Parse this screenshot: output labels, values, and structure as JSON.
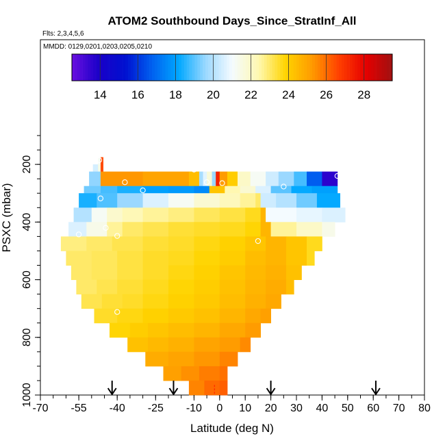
{
  "chart_data": {
    "type": "heatmap",
    "title": "ATOM2 Southbound Days_Since_StratInf_All",
    "subtitle_flights": "Flts: 2,3,4,5,6",
    "subtitle_dates": "MMDD: 0129,0201,0203,0205,0210",
    "xlabel": "Latitude (deg N)",
    "ylabel": "PSXC (mbar)",
    "xlim": [
      -70,
      80
    ],
    "ylim": [
      1000,
      50
    ],
    "x_ticks": [
      -70,
      -55,
      -40,
      -25,
      -10,
      0,
      10,
      20,
      30,
      40,
      50,
      60,
      70,
      80
    ],
    "x_tick_labels": [
      "-70",
      "-55",
      "-40",
      "-25",
      "-10",
      "0",
      "10",
      "20",
      "30",
      "40",
      "50",
      "60",
      "70",
      "80"
    ],
    "y_ticks": [
      200,
      400,
      600,
      800,
      1000
    ],
    "y_tick_labels": [
      "200",
      "400",
      "600",
      "800",
      "1000"
    ],
    "colorbar": {
      "min": 12.5,
      "max": 29.5,
      "ticks": [
        14,
        16,
        18,
        20,
        22,
        24,
        26,
        28
      ],
      "tick_labels": [
        "14",
        "16",
        "18",
        "20",
        "22",
        "24",
        "26",
        "28"
      ],
      "colors": [
        "#6a0fe0",
        "#1a00c8",
        "#0010d0",
        "#0060f0",
        "#00a8ff",
        "#9ad8ff",
        "#f4fbff",
        "#fff8b0",
        "#ffd400",
        "#ff9a00",
        "#ff4000",
        "#e60000",
        "#a01010"
      ]
    },
    "arrow_latitudes": [
      -42,
      -18,
      20,
      61
    ],
    "reference_line_latitude": -2,
    "reference_line_color": "#ff3000",
    "bands": [
      {
        "pmin": 175,
        "pmax": 200,
        "cells": [
          [
            -47.5,
            -46.5,
            21.2
          ],
          [
            -46.5,
            -45.5,
            26.5
          ]
        ]
      },
      {
        "pmin": 200,
        "pmax": 225,
        "cells": [
          [
            -49.5,
            -47.5,
            20.5
          ],
          [
            -47.5,
            -46.5,
            21.5
          ],
          [
            -46.5,
            -45.5,
            26.5
          ]
        ]
      },
      {
        "pmin": 225,
        "pmax": 275,
        "cells": [
          [
            -51,
            -46.5,
            19.5
          ],
          [
            -46.5,
            -30,
            25.3
          ],
          [
            -30,
            -12,
            25.0
          ],
          [
            -12,
            -8,
            24.4
          ],
          [
            -8,
            -6.5,
            19.8
          ],
          [
            -6.5,
            -5,
            20.7
          ],
          [
            -5,
            -3,
            21.7
          ],
          [
            -3,
            -1.5,
            19.6
          ],
          [
            -1.5,
            0,
            27.3
          ],
          [
            0,
            3,
            25.2
          ],
          [
            3,
            7,
            24.0
          ],
          [
            7,
            12,
            22.0
          ],
          [
            12,
            18,
            21.2
          ],
          [
            18,
            23,
            20.4
          ],
          [
            23,
            29,
            19.6
          ],
          [
            29,
            34,
            18.8
          ],
          [
            34,
            40,
            16.7
          ],
          [
            40,
            46,
            13.6
          ]
        ]
      },
      {
        "pmin": 275,
        "pmax": 300,
        "cells": [
          [
            -53,
            -46.5,
            19.2
          ],
          [
            -46.5,
            -40,
            18.8
          ],
          [
            -40,
            -30,
            18.4
          ],
          [
            -30,
            -20,
            18.0
          ],
          [
            -20,
            -10,
            17.9
          ],
          [
            -10,
            -4,
            17.6
          ],
          [
            -4,
            2,
            24.2
          ],
          [
            2,
            8,
            22.4
          ],
          [
            8,
            14,
            21.8
          ],
          [
            14,
            20,
            20.6
          ],
          [
            20,
            28,
            19.0
          ],
          [
            28,
            36,
            18.2
          ],
          [
            36,
            46,
            18.0
          ]
        ]
      },
      {
        "pmin": 300,
        "pmax": 350,
        "cells": [
          [
            -55,
            -48,
            18.4
          ],
          [
            -48,
            -40,
            18.9
          ],
          [
            -40,
            -30,
            19.6
          ],
          [
            -30,
            -20,
            20.6
          ],
          [
            -20,
            -10,
            21.2
          ],
          [
            -10,
            0,
            21.8
          ],
          [
            0,
            8,
            22.2
          ],
          [
            8,
            14,
            22.6
          ],
          [
            14,
            16,
            23.0
          ],
          [
            16,
            22,
            20.4
          ],
          [
            22,
            30,
            20.0
          ],
          [
            30,
            38,
            19.2
          ],
          [
            38,
            47,
            18.2
          ]
        ]
      },
      {
        "pmin": 350,
        "pmax": 400,
        "cells": [
          [
            -57,
            -50,
            20.0
          ],
          [
            -50,
            -44,
            21.2
          ],
          [
            -44,
            -38,
            21.9
          ],
          [
            -38,
            -30,
            22.3
          ],
          [
            -30,
            -20,
            22.6
          ],
          [
            -20,
            -10,
            22.8
          ],
          [
            -10,
            0,
            23.1
          ],
          [
            0,
            10,
            23.3
          ],
          [
            10,
            16,
            23.6
          ],
          [
            16,
            18,
            24.6
          ],
          [
            18,
            30,
            21.0
          ],
          [
            30,
            40,
            20.8
          ],
          [
            40,
            49,
            20.6
          ]
        ]
      },
      {
        "pmin": 400,
        "pmax": 450,
        "cells": [
          [
            -59,
            -52,
            20.6
          ],
          [
            -52,
            -44,
            21.4
          ],
          [
            -44,
            -38,
            22.6
          ],
          [
            -38,
            -30,
            23.0
          ],
          [
            -30,
            -20,
            23.2
          ],
          [
            -20,
            -10,
            23.4
          ],
          [
            -10,
            0,
            23.5
          ],
          [
            0,
            10,
            23.6
          ],
          [
            10,
            16,
            23.8
          ],
          [
            16,
            20,
            24.6
          ],
          [
            20,
            30,
            22.6
          ],
          [
            30,
            40,
            22.0
          ],
          [
            40,
            45,
            21.4
          ]
        ]
      },
      {
        "pmin": 450,
        "pmax": 500,
        "cells": [
          [
            -62,
            -52,
            22.8
          ],
          [
            -52,
            -42,
            23.0
          ],
          [
            -42,
            -30,
            23.2
          ],
          [
            -30,
            -20,
            23.4
          ],
          [
            -20,
            -10,
            23.5
          ],
          [
            -10,
            0,
            23.7
          ],
          [
            0,
            10,
            23.9
          ],
          [
            10,
            18,
            24.2
          ],
          [
            18,
            26,
            24.6
          ],
          [
            26,
            34,
            24.2
          ],
          [
            34,
            40,
            23.6
          ]
        ]
      },
      {
        "pmin": 500,
        "pmax": 550,
        "cells": [
          [
            -60,
            -50,
            23.0
          ],
          [
            -50,
            -40,
            23.1
          ],
          [
            -40,
            -30,
            23.3
          ],
          [
            -30,
            -20,
            23.5
          ],
          [
            -20,
            -10,
            23.6
          ],
          [
            -10,
            0,
            23.8
          ],
          [
            0,
            10,
            24.0
          ],
          [
            10,
            18,
            24.4
          ],
          [
            18,
            26,
            24.6
          ],
          [
            26,
            34,
            24.2
          ],
          [
            34,
            37,
            23.6
          ]
        ]
      },
      {
        "pmin": 550,
        "pmax": 600,
        "cells": [
          [
            -58,
            -50,
            23.0
          ],
          [
            -50,
            -40,
            23.1
          ],
          [
            -40,
            -30,
            23.3
          ],
          [
            -30,
            -20,
            23.5
          ],
          [
            -20,
            -10,
            23.7
          ],
          [
            -10,
            0,
            23.9
          ],
          [
            0,
            10,
            24.2
          ],
          [
            10,
            18,
            24.5
          ],
          [
            18,
            26,
            24.7
          ],
          [
            26,
            32,
            24.3
          ]
        ]
      },
      {
        "pmin": 600,
        "pmax": 650,
        "cells": [
          [
            -56,
            -48,
            23.0
          ],
          [
            -48,
            -40,
            23.2
          ],
          [
            -40,
            -30,
            23.4
          ],
          [
            -30,
            -20,
            23.6
          ],
          [
            -20,
            -10,
            23.8
          ],
          [
            -10,
            0,
            24.0
          ],
          [
            0,
            10,
            24.3
          ],
          [
            10,
            18,
            24.6
          ],
          [
            18,
            26,
            24.8
          ],
          [
            26,
            29,
            24.4
          ]
        ]
      },
      {
        "pmin": 650,
        "pmax": 700,
        "cells": [
          [
            -54,
            -46,
            23.2
          ],
          [
            -46,
            -38,
            23.4
          ],
          [
            -38,
            -30,
            23.5
          ],
          [
            -30,
            -20,
            23.7
          ],
          [
            -20,
            -10,
            23.9
          ],
          [
            -10,
            0,
            24.1
          ],
          [
            0,
            10,
            24.4
          ],
          [
            10,
            18,
            24.7
          ],
          [
            18,
            24,
            24.9
          ]
        ]
      },
      {
        "pmin": 700,
        "pmax": 750,
        "cells": [
          [
            -49,
            -40,
            23.5
          ],
          [
            -40,
            -30,
            23.7
          ],
          [
            -30,
            -20,
            23.9
          ],
          [
            -20,
            -10,
            24.1
          ],
          [
            -10,
            0,
            24.3
          ],
          [
            0,
            10,
            24.6
          ],
          [
            10,
            16,
            24.9
          ],
          [
            16,
            20,
            25.1
          ]
        ]
      },
      {
        "pmin": 750,
        "pmax": 800,
        "cells": [
          [
            -43,
            -35,
            23.8
          ],
          [
            -35,
            -28,
            24.0
          ],
          [
            -28,
            -20,
            24.2
          ],
          [
            -20,
            -10,
            24.4
          ],
          [
            -10,
            0,
            24.6
          ],
          [
            0,
            10,
            24.9
          ],
          [
            10,
            16,
            25.2
          ]
        ]
      },
      {
        "pmin": 800,
        "pmax": 850,
        "cells": [
          [
            -36,
            -28,
            24.3
          ],
          [
            -28,
            -20,
            24.5
          ],
          [
            -20,
            -10,
            24.7
          ],
          [
            -10,
            0,
            25.0
          ],
          [
            0,
            8,
            25.2
          ],
          [
            8,
            12,
            25.5
          ]
        ]
      },
      {
        "pmin": 850,
        "pmax": 900,
        "cells": [
          [
            -29,
            -20,
            24.8
          ],
          [
            -20,
            -10,
            25.0
          ],
          [
            -10,
            0,
            25.3
          ],
          [
            0,
            7,
            25.6
          ]
        ]
      },
      {
        "pmin": 900,
        "pmax": 950,
        "cells": [
          [
            -22,
            -15,
            25.1
          ],
          [
            -15,
            -8,
            25.4
          ],
          [
            -8,
            0,
            25.7
          ],
          [
            0,
            3,
            25.9
          ]
        ]
      },
      {
        "pmin": 950,
        "pmax": 1000,
        "cells": [
          [
            -12,
            -6,
            25.6
          ],
          [
            -6,
            0,
            26.0
          ],
          [
            0,
            3,
            26.2
          ]
        ]
      }
    ],
    "sample_points": [
      {
        "lat": -47,
        "p": 185
      },
      {
        "lat": -46.5,
        "p": 318
      },
      {
        "lat": -37,
        "p": 262
      },
      {
        "lat": -30,
        "p": 290
      },
      {
        "lat": -10,
        "p": 218
      },
      {
        "lat": -5,
        "p": 262
      },
      {
        "lat": 1,
        "p": 265
      },
      {
        "lat": 25,
        "p": 277
      },
      {
        "lat": 46,
        "p": 240
      },
      {
        "lat": -44.5,
        "p": 420
      },
      {
        "lat": -55,
        "p": 443
      },
      {
        "lat": -40,
        "p": 448
      },
      {
        "lat": 15,
        "p": 466
      },
      {
        "lat": -40,
        "p": 712
      }
    ]
  }
}
